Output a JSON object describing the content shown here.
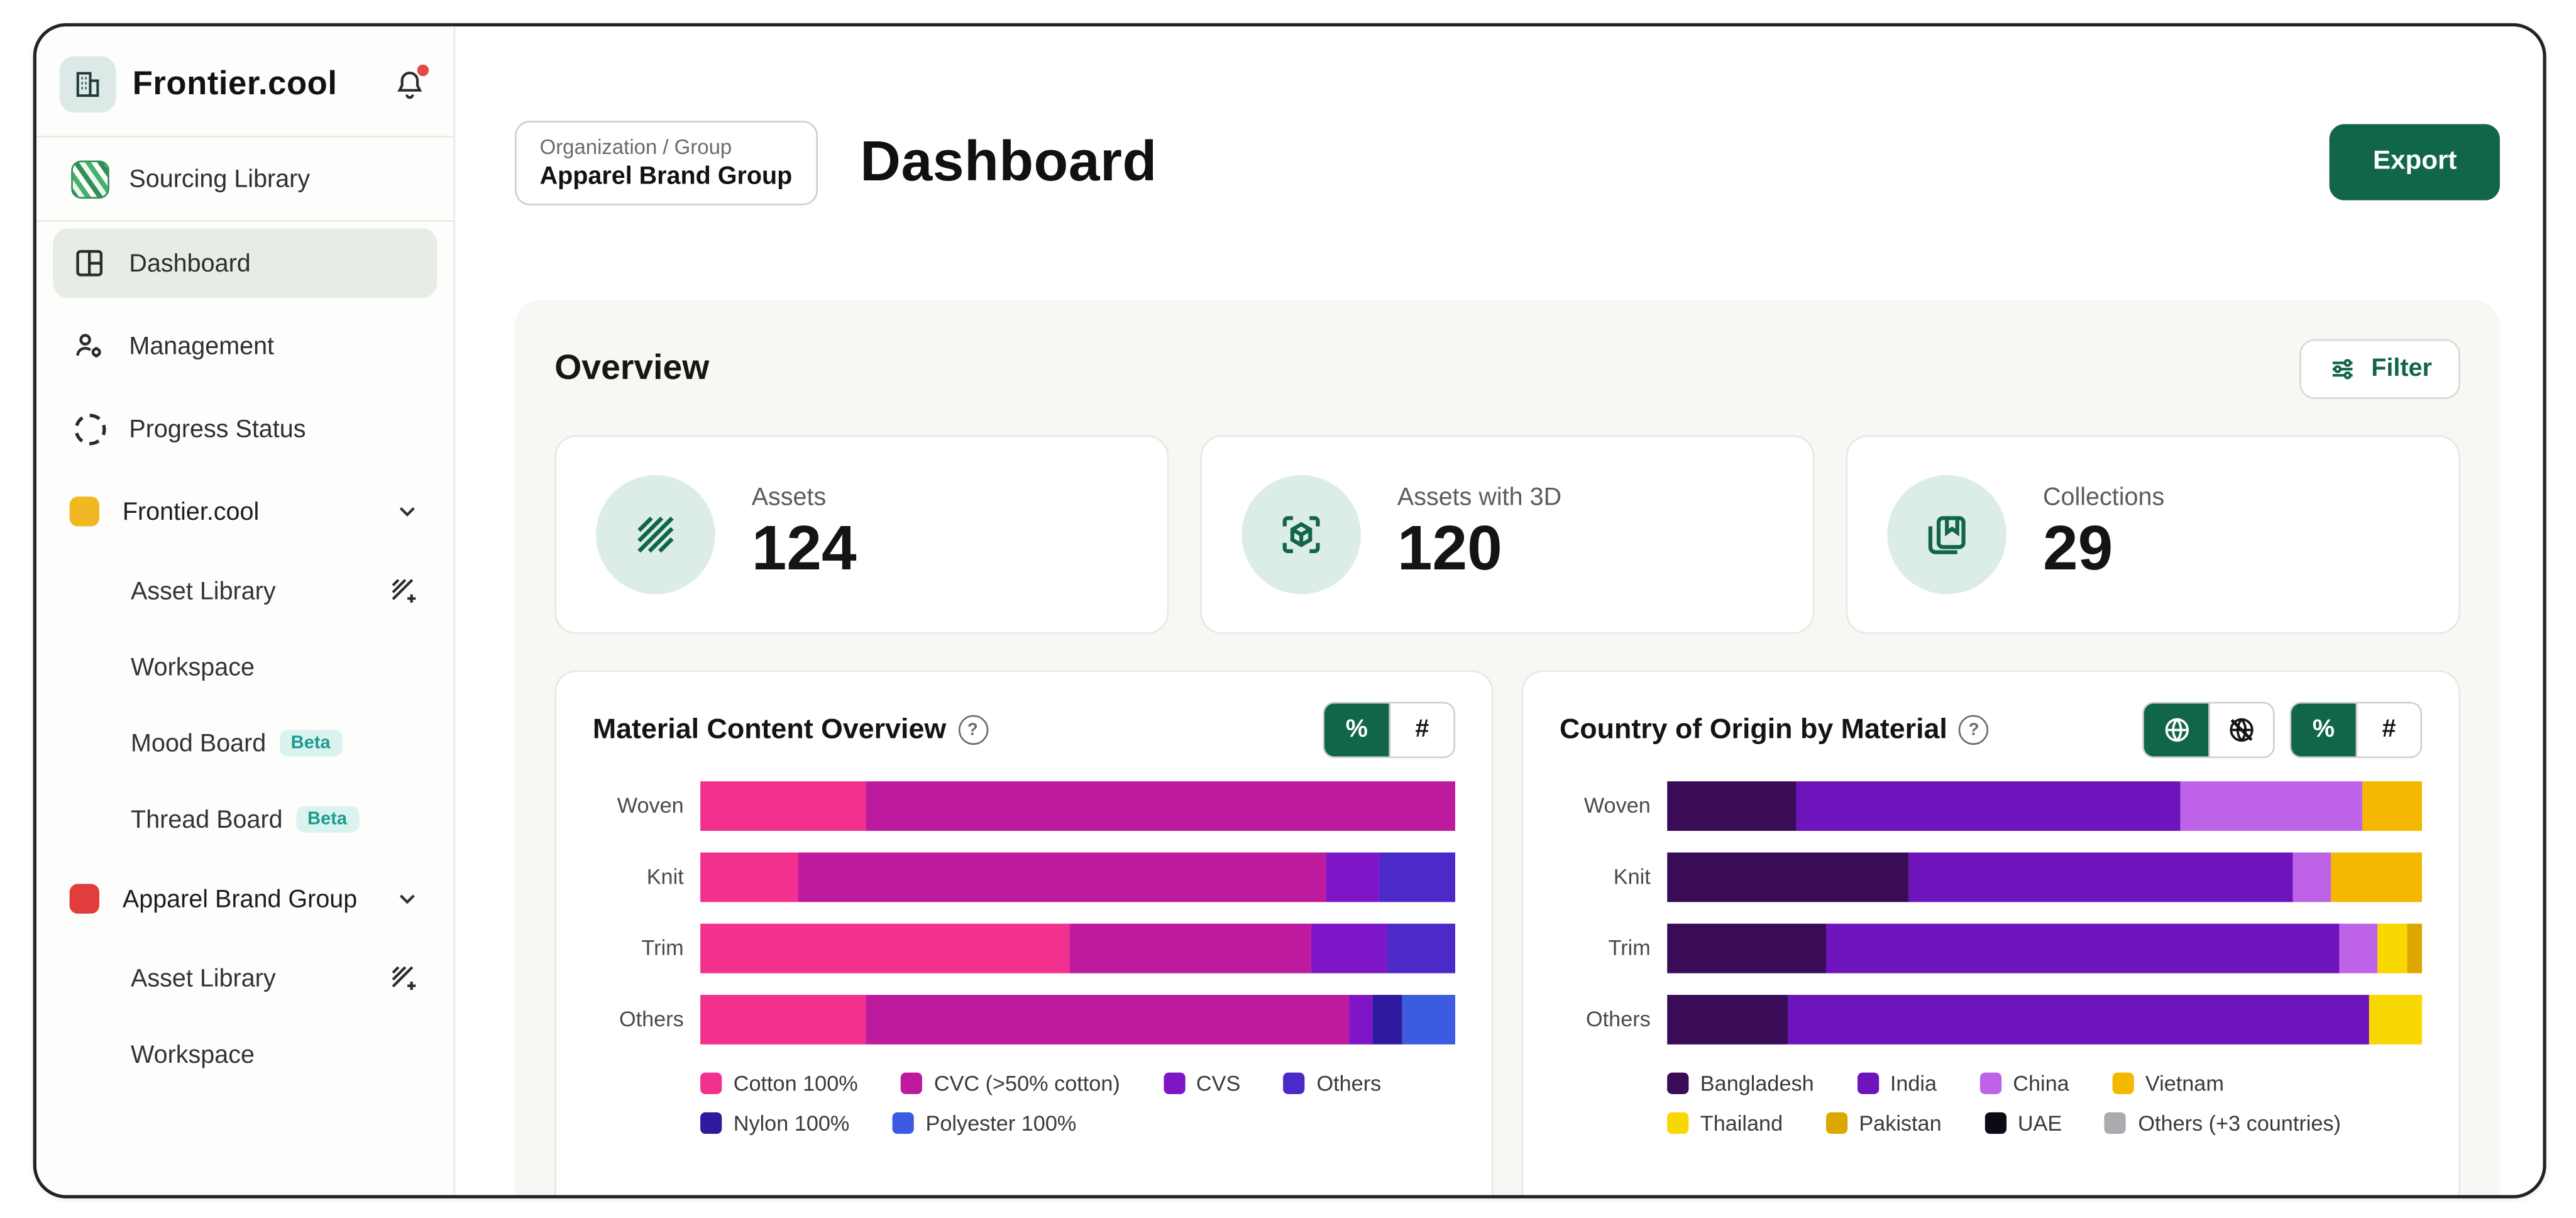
{
  "app": {
    "brand": "Frontier.cool"
  },
  "sidebar": {
    "items": [
      {
        "label": "Sourcing Library"
      },
      {
        "label": "Dashboard"
      },
      {
        "label": "Management"
      },
      {
        "label": "Progress Status"
      }
    ],
    "groups": [
      {
        "label": "Frontier.cool",
        "color": "#F2B824",
        "children": [
          {
            "label": "Asset Library"
          },
          {
            "label": "Workspace"
          },
          {
            "label": "Mood Board",
            "badge": "Beta"
          },
          {
            "label": "Thread Board",
            "badge": "Beta"
          }
        ]
      },
      {
        "label": "Apparel Brand Group",
        "color": "#E23D3D",
        "children": [
          {
            "label": "Asset Library"
          },
          {
            "label": "Workspace"
          }
        ]
      }
    ]
  },
  "header": {
    "breadcrumb_label": "Organization / Group",
    "breadcrumb_value": "Apparel Brand Group",
    "title": "Dashboard",
    "export_label": "Export"
  },
  "overview": {
    "title": "Overview",
    "filter_label": "Filter",
    "stats": [
      {
        "label": "Assets",
        "value": "124"
      },
      {
        "label": "Assets with 3D",
        "value": "120"
      },
      {
        "label": "Collections",
        "value": "29"
      }
    ]
  },
  "toggles": {
    "percent_label": "%",
    "count_label": "#",
    "help_glyph": "?"
  },
  "accent_color": "#11654B",
  "chart_data": [
    {
      "type": "bar",
      "orientation": "horizontal",
      "stacked": true,
      "unit": "percent",
      "title": "Material Content Overview",
      "categories": [
        "Woven",
        "Knit",
        "Trim",
        "Others"
      ],
      "series": [
        {
          "name": "Cotton 100%",
          "color": "#F2318E",
          "values": [
            22,
            13,
            49,
            22
          ]
        },
        {
          "name": "CVC (>50% cotton)",
          "color": "#BE1A9E",
          "values": [
            78,
            70,
            32,
            64
          ]
        },
        {
          "name": "CVS",
          "color": "#7E16C8",
          "values": [
            0,
            7,
            10,
            3
          ]
        },
        {
          "name": "Others",
          "color": "#4C2AC9",
          "values": [
            0,
            10,
            9,
            0
          ]
        },
        {
          "name": "Nylon 100%",
          "color": "#2E1A9E",
          "values": [
            0,
            0,
            0,
            4
          ]
        },
        {
          "name": "Polyester 100%",
          "color": "#3D5BE0",
          "values": [
            0,
            0,
            0,
            7
          ]
        }
      ],
      "xlim": [
        0,
        100
      ],
      "legend_position": "bottom",
      "controls": {
        "percent_active": true,
        "count_active": false
      }
    },
    {
      "type": "bar",
      "orientation": "horizontal",
      "stacked": true,
      "unit": "percent",
      "title": "Country of Origin by Material",
      "categories": [
        "Woven",
        "Knit",
        "Trim",
        "Others"
      ],
      "series": [
        {
          "name": "Bangladesh",
          "color": "#3A0B57",
          "values": [
            17,
            32,
            21,
            16
          ]
        },
        {
          "name": "India",
          "color": "#6D14BC",
          "values": [
            51,
            51,
            68,
            77
          ]
        },
        {
          "name": "China",
          "color": "#BE62E8",
          "values": [
            24,
            5,
            5,
            0
          ]
        },
        {
          "name": "Vietnam",
          "color": "#F5B800",
          "values": [
            8,
            12,
            0,
            0
          ]
        },
        {
          "name": "Thailand",
          "color": "#F8D800",
          "values": [
            0,
            0,
            4,
            7
          ]
        },
        {
          "name": "Pakistan",
          "color": "#DCA800",
          "values": [
            0,
            0,
            2,
            0
          ]
        },
        {
          "name": "UAE",
          "color": "#0B0B16",
          "values": [
            0,
            0,
            0,
            0
          ]
        },
        {
          "name": "Others (+3 countries)",
          "color": "#ABABAF",
          "values": [
            0,
            0,
            0,
            0
          ]
        }
      ],
      "xlim": [
        0,
        100
      ],
      "legend_position": "bottom",
      "controls": {
        "globe_active": true,
        "globe_off_active": false,
        "percent_active": true,
        "count_active": false
      }
    }
  ]
}
